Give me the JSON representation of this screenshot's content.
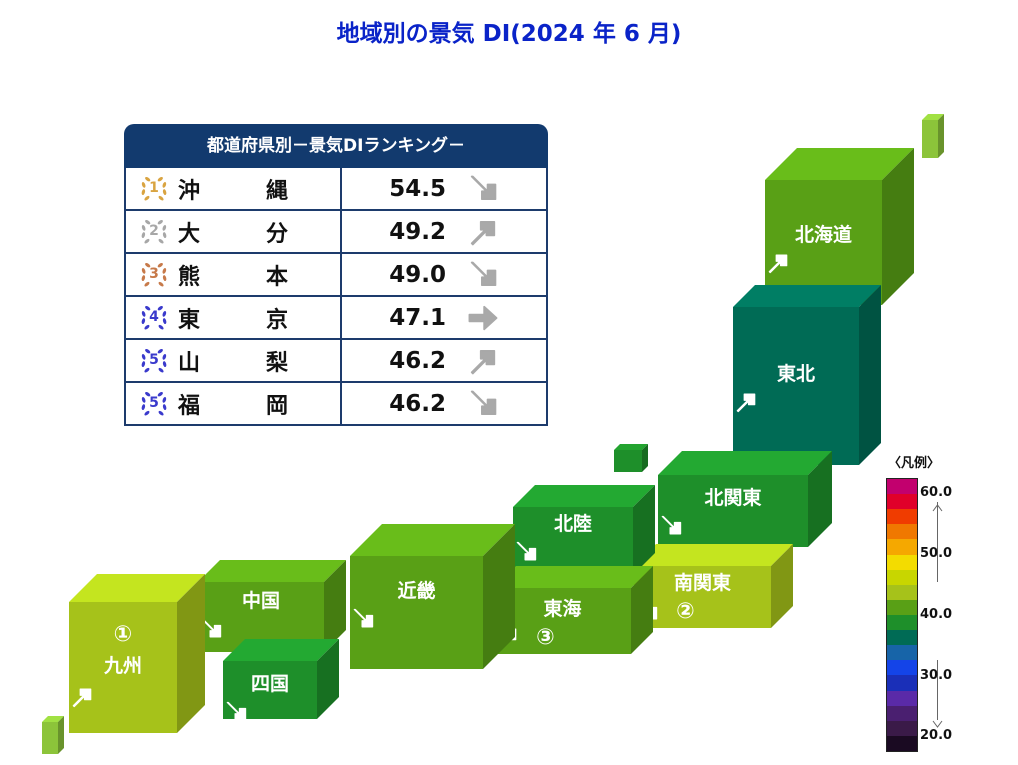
{
  "title": "地域別の景気 DI(2024 年 6 月)",
  "ranking": {
    "header": "都道府県別－景気DIランキング－",
    "rows": [
      {
        "rank": "1",
        "name_a": "沖",
        "name_b": "縄",
        "value": "54.5",
        "trend": "down",
        "medal": "#d9a441"
      },
      {
        "rank": "2",
        "name_a": "大",
        "name_b": "分",
        "value": "49.2",
        "trend": "up",
        "medal": "#a7a7a7"
      },
      {
        "rank": "3",
        "name_a": "熊",
        "name_b": "本",
        "value": "49.0",
        "trend": "down",
        "medal": "#c77a4a"
      },
      {
        "rank": "4",
        "name_a": "東",
        "name_b": "京",
        "value": "47.1",
        "trend": "flat",
        "medal": "#3a3acc"
      },
      {
        "rank": "5",
        "name_a": "山",
        "name_b": "梨",
        "value": "46.2",
        "trend": "up",
        "medal": "#3a3acc"
      },
      {
        "rank": "5",
        "name_a": "福",
        "name_b": "岡",
        "value": "46.2",
        "trend": "down",
        "medal": "#3a3acc"
      }
    ]
  },
  "regions": [
    {
      "id": "hokkaido",
      "name": "北海道",
      "trend": "up",
      "rank_mark": "",
      "color": "#59a016"
    },
    {
      "id": "tohoku",
      "name": "東北",
      "trend": "up",
      "rank_mark": "",
      "color": "#006b55"
    },
    {
      "id": "kitakanto",
      "name": "北関東",
      "trend": "down",
      "rank_mark": "",
      "color": "#1e8f2a"
    },
    {
      "id": "minamikanto",
      "name": "南関東",
      "trend": "down",
      "rank_mark": "②",
      "color": "#a6c21a"
    },
    {
      "id": "hokuriku",
      "name": "北陸",
      "trend": "down",
      "rank_mark": "",
      "color": "#1e8f2a"
    },
    {
      "id": "tokai",
      "name": "東海",
      "trend": "up",
      "rank_mark": "③",
      "color": "#59a016"
    },
    {
      "id": "kinki",
      "name": "近畿",
      "trend": "down",
      "rank_mark": "",
      "color": "#59a016"
    },
    {
      "id": "chugoku",
      "name": "中国",
      "trend": "down",
      "rank_mark": "",
      "color": "#59a016"
    },
    {
      "id": "shikoku",
      "name": "四国",
      "trend": "down",
      "rank_mark": "",
      "color": "#1e8f2a"
    },
    {
      "id": "kyushu",
      "name": "九州",
      "trend": "up",
      "rank_mark": "①",
      "color": "#a6c21a"
    }
  ],
  "legend": {
    "title": "〈凡例〉",
    "ticks": [
      "60.0",
      "50.0",
      "40.0",
      "30.0",
      "20.0"
    ],
    "colors": [
      "#c2006e",
      "#e0002a",
      "#f03c00",
      "#f07800",
      "#f5a800",
      "#f3dc00",
      "#c8d600",
      "#a6c21a",
      "#59a016",
      "#1e8f2a",
      "#006b55",
      "#1764a8",
      "#1444e8",
      "#1a2fb8",
      "#5a2aa8",
      "#4a1f70",
      "#3a1a48",
      "#1a0a22"
    ]
  }
}
